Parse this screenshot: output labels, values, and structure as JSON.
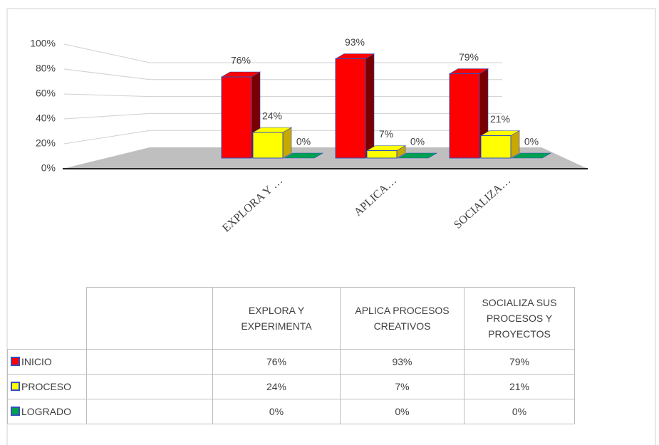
{
  "chart_data": {
    "type": "bar3d",
    "categories": [
      "EXPLORA Y EXPERIMENTA",
      "APLICA PROCESOS CREATIVOS",
      "SOCIALIZA SUS PROCESOS Y PROYECTOS"
    ],
    "category_labels": [
      "EXPLORA Y …",
      "APLICA…",
      "SOCIALIZA…"
    ],
    "series": [
      {
        "name": "INICIO",
        "color": "#ff0000",
        "side_color": "#7a0000",
        "values": [
          76,
          93,
          79
        ],
        "value_labels": [
          "76%",
          "93%",
          "79%"
        ]
      },
      {
        "name": "PROCESO",
        "color": "#ffff00",
        "side_color": "#c9a800",
        "values": [
          24,
          7,
          21
        ],
        "value_labels": [
          "24%",
          "7%",
          "21%"
        ]
      },
      {
        "name": "LOGRADO",
        "color": "#00a050",
        "side_color": "#006a30",
        "values": [
          0,
          0,
          0
        ],
        "value_labels": [
          "0%",
          "0%",
          "0%"
        ]
      }
    ],
    "ylim": [
      0,
      100
    ],
    "yticks": [
      {
        "value": 0,
        "label": "0%"
      },
      {
        "value": 20,
        "label": "20%"
      },
      {
        "value": 40,
        "label": "40%"
      },
      {
        "value": 60,
        "label": "60%"
      },
      {
        "value": 80,
        "label": "80%"
      },
      {
        "value": 100,
        "label": "100%"
      }
    ],
    "grid": true
  }
}
